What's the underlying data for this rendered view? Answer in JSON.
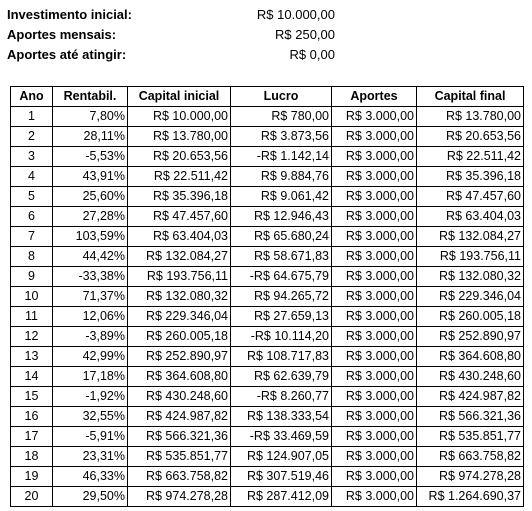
{
  "summary": [
    {
      "label": "Investimento inicial:",
      "value": "R$ 10.000,00"
    },
    {
      "label": "Aportes mensais:",
      "value": "R$ 250,00"
    },
    {
      "label": "Aportes até atingir:",
      "value": "R$ 0,00"
    }
  ],
  "table": {
    "headers": [
      "Ano",
      "Rentabil.",
      "Capital inicial",
      "Lucro",
      "Aportes",
      "Capital final"
    ],
    "rows": [
      [
        "1",
        "7,80%",
        "R$ 10.000,00",
        "R$ 780,00",
        "R$ 3.000,00",
        "R$ 13.780,00"
      ],
      [
        "2",
        "28,11%",
        "R$ 13.780,00",
        "R$ 3.873,56",
        "R$ 3.000,00",
        "R$ 20.653,56"
      ],
      [
        "3",
        "-5,53%",
        "R$ 20.653,56",
        "-R$ 1.142,14",
        "R$ 3.000,00",
        "R$ 22.511,42"
      ],
      [
        "4",
        "43,91%",
        "R$ 22.511,42",
        "R$ 9.884,76",
        "R$ 3.000,00",
        "R$ 35.396,18"
      ],
      [
        "5",
        "25,60%",
        "R$ 35.396,18",
        "R$ 9.061,42",
        "R$ 3.000,00",
        "R$ 47.457,60"
      ],
      [
        "6",
        "27,28%",
        "R$ 47.457,60",
        "R$ 12.946,43",
        "R$ 3.000,00",
        "R$ 63.404,03"
      ],
      [
        "7",
        "103,59%",
        "R$ 63.404,03",
        "R$ 65.680,24",
        "R$ 3.000,00",
        "R$ 132.084,27"
      ],
      [
        "8",
        "44,42%",
        "R$ 132.084,27",
        "R$ 58.671,83",
        "R$ 3.000,00",
        "R$ 193.756,11"
      ],
      [
        "9",
        "-33,38%",
        "R$ 193.756,11",
        "-R$ 64.675,79",
        "R$ 3.000,00",
        "R$ 132.080,32"
      ],
      [
        "10",
        "71,37%",
        "R$ 132.080,32",
        "R$ 94.265,72",
        "R$ 3.000,00",
        "R$ 229.346,04"
      ],
      [
        "11",
        "12,06%",
        "R$ 229.346,04",
        "R$ 27.659,13",
        "R$ 3.000,00",
        "R$ 260.005,18"
      ],
      [
        "12",
        "-3,89%",
        "R$ 260.005,18",
        "-R$ 10.114,20",
        "R$ 3.000,00",
        "R$ 252.890,97"
      ],
      [
        "13",
        "42,99%",
        "R$ 252.890,97",
        "R$ 108.717,83",
        "R$ 3.000,00",
        "R$ 364.608,80"
      ],
      [
        "14",
        "17,18%",
        "R$ 364.608,80",
        "R$ 62.639,79",
        "R$ 3.000,00",
        "R$ 430.248,60"
      ],
      [
        "15",
        "-1,92%",
        "R$ 430.248,60",
        "-R$ 8.260,77",
        "R$ 3.000,00",
        "R$ 424.987,82"
      ],
      [
        "16",
        "32,55%",
        "R$ 424.987,82",
        "R$ 138.333,54",
        "R$ 3.000,00",
        "R$ 566.321,36"
      ],
      [
        "17",
        "-5,91%",
        "R$ 566.321,36",
        "-R$ 33.469,59",
        "R$ 3.000,00",
        "R$ 535.851,77"
      ],
      [
        "18",
        "23,31%",
        "R$ 535.851,77",
        "R$ 124.907,05",
        "R$ 3.000,00",
        "R$ 663.758,82"
      ],
      [
        "19",
        "46,33%",
        "R$ 663.758,82",
        "R$ 307.519,46",
        "R$ 3.000,00",
        "R$ 974.278,28"
      ],
      [
        "20",
        "29,50%",
        "R$ 974.278,28",
        "R$ 287.412,09",
        "R$ 3.000,00",
        "R$ 1.264.690,37"
      ]
    ]
  }
}
